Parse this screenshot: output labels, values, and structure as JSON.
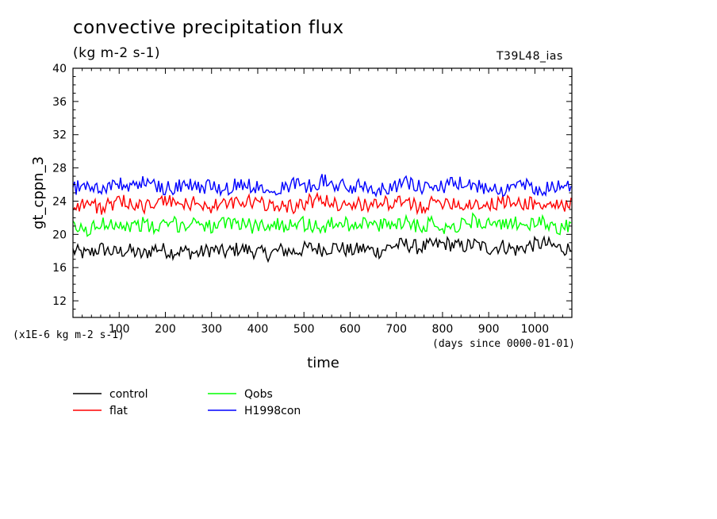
{
  "header": {
    "title": "convective precipitation flux",
    "units": "(kg m-2 s-1)",
    "run_name": "T39L48_ias"
  },
  "footer": {
    "y_scale_note": "(x1E-6 kg m-2 s-1)",
    "x_units_note": "(days since 0000-01-01)"
  },
  "chart_data": {
    "type": "line",
    "xlabel": "time",
    "ylabel": "gt_cppn_3",
    "xlim": [
      0,
      1080
    ],
    "ylim": [
      10,
      40
    ],
    "x_ticks": [
      100,
      200,
      300,
      400,
      500,
      600,
      700,
      800,
      900,
      1000
    ],
    "y_ticks": [
      12,
      16,
      20,
      24,
      28,
      32,
      36,
      40
    ],
    "grid": false,
    "legend_placement": "bottom-left",
    "x": [
      0,
      30,
      60,
      90,
      120,
      150,
      180,
      210,
      240,
      270,
      300,
      330,
      360,
      390,
      420,
      450,
      480,
      510,
      540,
      570,
      600,
      630,
      660,
      690,
      720,
      750,
      780,
      810,
      840,
      870,
      900,
      930,
      960,
      990,
      1020,
      1050,
      1080
    ],
    "series": [
      {
        "name": "control",
        "color": "#000000",
        "values": [
          18.0,
          17.6,
          18.3,
          17.8,
          18.1,
          17.5,
          18.4,
          17.9,
          18.0,
          17.7,
          18.2,
          17.8,
          18.3,
          18.0,
          17.6,
          18.1,
          17.9,
          18.4,
          18.2,
          18.5,
          18.0,
          18.3,
          17.9,
          18.6,
          18.8,
          18.4,
          18.7,
          18.9,
          18.5,
          18.8,
          18.3,
          18.6,
          18.1,
          18.7,
          18.9,
          18.4,
          18.2
        ]
      },
      {
        "name": "Qobs",
        "color": "#00ff00",
        "values": [
          20.8,
          20.4,
          21.2,
          21.5,
          20.9,
          21.3,
          20.6,
          21.4,
          21.0,
          21.7,
          20.8,
          21.2,
          21.5,
          20.9,
          21.3,
          21.0,
          21.6,
          21.1,
          20.8,
          21.4,
          21.2,
          21.5,
          20.9,
          21.3,
          21.6,
          21.0,
          21.4,
          20.8,
          21.2,
          21.7,
          21.3,
          20.9,
          21.5,
          21.1,
          21.4,
          20.8,
          21.0
        ]
      },
      {
        "name": "flat",
        "color": "#ff0000",
        "values": [
          23.4,
          23.8,
          23.2,
          23.6,
          24.0,
          23.3,
          23.7,
          24.1,
          23.5,
          23.9,
          23.2,
          23.8,
          23.6,
          24.0,
          23.4,
          23.7,
          23.3,
          23.9,
          24.2,
          23.6,
          23.8,
          23.4,
          24.0,
          23.5,
          23.9,
          23.3,
          23.7,
          24.1,
          23.5,
          23.8,
          23.4,
          24.0,
          23.6,
          23.9,
          23.3,
          23.7,
          23.5
        ]
      },
      {
        "name": "H1998con",
        "color": "#0000ff",
        "values": [
          25.6,
          25.9,
          25.4,
          26.1,
          25.7,
          26.3,
          25.8,
          25.5,
          26.0,
          25.6,
          25.9,
          25.3,
          26.2,
          25.7,
          25.9,
          25.5,
          26.1,
          25.8,
          26.5,
          25.9,
          25.6,
          26.0,
          25.4,
          25.8,
          26.2,
          25.7,
          25.5,
          25.9,
          26.1,
          25.6,
          25.8,
          25.4,
          26.0,
          25.7,
          25.5,
          25.9,
          25.6
        ]
      }
    ],
    "legend_order": [
      "control",
      "flat",
      "Qobs",
      "H1998con"
    ]
  }
}
